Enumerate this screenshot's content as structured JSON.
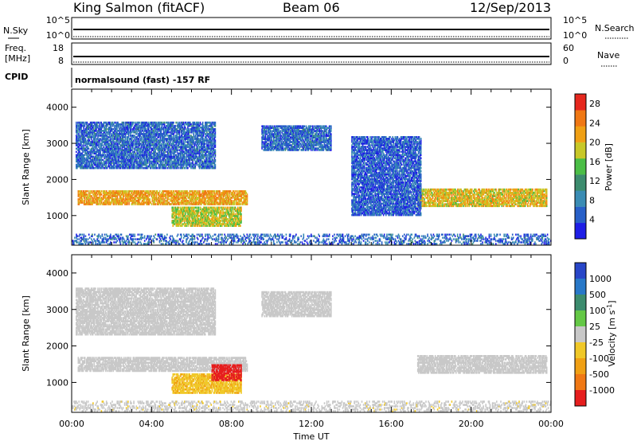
{
  "header": {
    "station": "King Salmon (fitACF)",
    "beam": "Beam 06",
    "date": "12/Sep/2013"
  },
  "strip_panels": {
    "nsky_label": "N.Sky",
    "nsearch_label": "N.Search",
    "freq_label_1": "Freq.",
    "freq_label_2": "[MHz]",
    "nave_label": "Nave",
    "cpid_label": "CPID",
    "cpid_text": "normalsound (fast) -157 RF",
    "noise_ticks_left": [
      "10^5",
      "10^0"
    ],
    "noise_ticks_right": [
      "10^5",
      "10^0"
    ],
    "freq_ticks_left": [
      "18",
      "8"
    ],
    "freq_ticks_right": [
      "60",
      "0"
    ]
  },
  "chart_data": [
    {
      "type": "heatmap",
      "title": "",
      "xlabel": "Time UT",
      "ylabel": "Slant Range [km]",
      "xlim": [
        0,
        24
      ],
      "ylim": [
        180,
        4500
      ],
      "x_tick_labels": [
        "00:00",
        "04:00",
        "08:00",
        "12:00",
        "16:00",
        "20:00",
        "00:00"
      ],
      "y_tick_labels": [
        "1000",
        "2000",
        "3000",
        "4000"
      ],
      "y_ticks": [
        1000,
        2000,
        3000,
        4000
      ],
      "colorbar": {
        "label": "Power [dB]",
        "ticks": [
          "4",
          "8",
          "12",
          "16",
          "20",
          "24",
          "28"
        ],
        "range": [
          0,
          30
        ],
        "colors": [
          "#1e1ee6",
          "#2860c8",
          "#3a8cb4",
          "#3c8c6e",
          "#4bbe46",
          "#c8c828",
          "#f0a014",
          "#f07814",
          "#e6281e"
        ]
      },
      "echo_regions": [
        {
          "t_start": 0.3,
          "t_end": 8.8,
          "r_start": 1300,
          "r_end": 1700,
          "value": 22
        },
        {
          "t_start": 17.3,
          "t_end": 23.8,
          "r_start": 1250,
          "r_end": 1750,
          "value": 20
        },
        {
          "t_start": 5.0,
          "t_end": 8.5,
          "r_start": 700,
          "r_end": 1250,
          "value": 18
        },
        {
          "t_start": 0.2,
          "t_end": 7.2,
          "r_start": 2300,
          "r_end": 3600,
          "value": 6
        },
        {
          "t_start": 9.5,
          "t_end": 13.0,
          "r_start": 2800,
          "r_end": 3500,
          "value": 6
        },
        {
          "t_start": 14.0,
          "t_end": 17.5,
          "r_start": 1000,
          "r_end": 3200,
          "value": 5
        },
        {
          "t_start": 0.0,
          "t_end": 24.0,
          "r_start": 200,
          "r_end": 500,
          "value": 6
        }
      ]
    },
    {
      "type": "heatmap",
      "title": "",
      "xlabel": "Time UT",
      "ylabel": "Slant Range [km]",
      "xlim": [
        0,
        24
      ],
      "ylim": [
        180,
        4500
      ],
      "x_tick_labels": [
        "00:00",
        "04:00",
        "08:00",
        "12:00",
        "16:00",
        "20:00",
        "00:00"
      ],
      "y_tick_labels": [
        "1000",
        "2000",
        "3000",
        "4000"
      ],
      "y_ticks": [
        1000,
        2000,
        3000,
        4000
      ],
      "colorbar": {
        "label": "Velocity [m s-1]",
        "ticks": [
          "1000",
          "500",
          "100",
          "25",
          "-25",
          "-100",
          "-500",
          "-1000"
        ],
        "range": [
          -1000,
          1000
        ],
        "colors": [
          "#2846c8",
          "#2878c8",
          "#3c8c6e",
          "#64c846",
          "#c8c8c8",
          "#f0c828",
          "#f0a014",
          "#f07814",
          "#e61e1e"
        ]
      },
      "echo_regions": [
        {
          "t_start": 0.3,
          "t_end": 8.8,
          "r_start": 1300,
          "r_end": 1700,
          "value": 0
        },
        {
          "t_start": 17.3,
          "t_end": 23.8,
          "r_start": 1250,
          "r_end": 1750,
          "value": 0
        },
        {
          "t_start": 5.0,
          "t_end": 8.5,
          "r_start": 700,
          "r_end": 1250,
          "value": -300
        },
        {
          "t_start": 7.0,
          "t_end": 8.5,
          "r_start": 1050,
          "r_end": 1500,
          "value": -900
        },
        {
          "t_start": 0.2,
          "t_end": 7.2,
          "r_start": 2300,
          "r_end": 3600,
          "value": 0
        },
        {
          "t_start": 9.5,
          "t_end": 13.0,
          "r_start": 2800,
          "r_end": 3500,
          "value": 0
        },
        {
          "t_start": 0.0,
          "t_end": 24.0,
          "r_start": 200,
          "r_end": 500,
          "value": -50
        }
      ]
    }
  ]
}
